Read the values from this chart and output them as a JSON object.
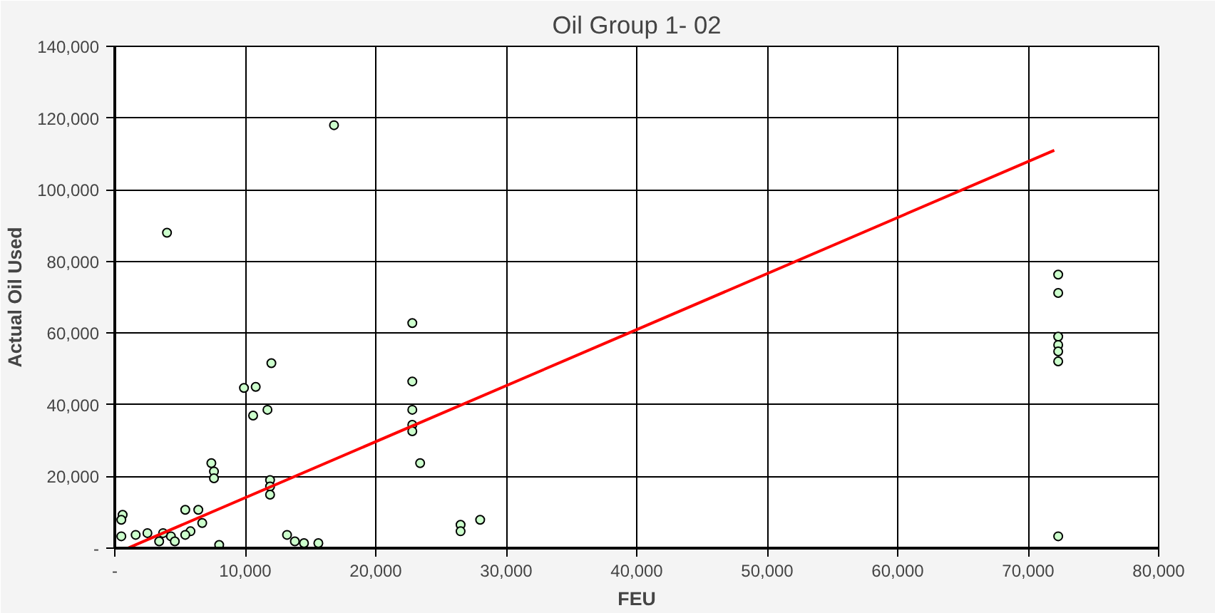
{
  "chart_data": {
    "type": "scatter",
    "title": "Oil Group 1- 02",
    "xlabel": "FEU",
    "ylabel": "Actual Oil Used",
    "xlim": [
      0,
      80000
    ],
    "ylim": [
      0,
      140000
    ],
    "xticks": [
      {
        "value": 0,
        "label": "-"
      },
      {
        "value": 10000,
        "label": "10,000"
      },
      {
        "value": 20000,
        "label": "20,000"
      },
      {
        "value": 30000,
        "label": "30,000"
      },
      {
        "value": 40000,
        "label": "40,000"
      },
      {
        "value": 50000,
        "label": "50,000"
      },
      {
        "value": 60000,
        "label": "60,000"
      },
      {
        "value": 70000,
        "label": "70,000"
      },
      {
        "value": 80000,
        "label": "80,000"
      }
    ],
    "yticks": [
      {
        "value": 0,
        "label": "-"
      },
      {
        "value": 20000,
        "label": "20,000"
      },
      {
        "value": 40000,
        "label": "40,000"
      },
      {
        "value": 60000,
        "label": "60,000"
      },
      {
        "value": 80000,
        "label": "80,000"
      },
      {
        "value": 100000,
        "label": "100,000"
      },
      {
        "value": 120000,
        "label": "120,000"
      },
      {
        "value": 140000,
        "label": "140,000"
      }
    ],
    "grid": true,
    "series": [
      {
        "marker": "circle",
        "color": "#ccffcc",
        "x": [
          16800,
          4000,
          12000,
          9900,
          10800,
          10600,
          11700,
          7400,
          7600,
          7600,
          11900,
          11900,
          11900,
          22800,
          22800,
          22800,
          22800,
          22800,
          23400,
          26500,
          26500,
          28000,
          13200,
          13800,
          14500,
          15600,
          8000,
          600,
          500,
          500,
          1600,
          2500,
          5400,
          6400,
          5800,
          5400,
          4300,
          3700,
          6700,
          4600,
          3400,
          72300,
          72300,
          72300,
          72300,
          72300,
          72300,
          72300
        ],
        "values": [
          118000,
          88000,
          51600,
          44700,
          45000,
          37000,
          38600,
          23700,
          21400,
          19500,
          19000,
          17200,
          14900,
          62800,
          46500,
          38600,
          34400,
          32600,
          23700,
          6500,
          4700,
          7900,
          3700,
          1900,
          1400,
          1400,
          900,
          9300,
          7900,
          3300,
          3700,
          4200,
          10700,
          10700,
          4700,
          3700,
          3300,
          4200,
          7000,
          1900,
          1900,
          76300,
          71200,
          59000,
          56700,
          54900,
          52100,
          3300
        ]
      },
      {
        "type": "line",
        "marker": "none",
        "color": "#ff0000",
        "x": [
          1000,
          72000
        ],
        "values": [
          0,
          111000
        ]
      }
    ]
  }
}
